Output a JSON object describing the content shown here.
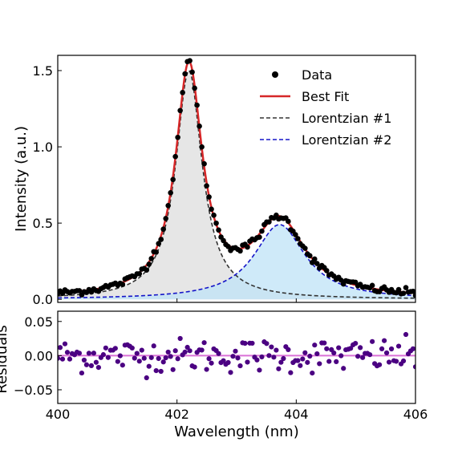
{
  "chart_data": [
    {
      "type": "line",
      "panel": "main",
      "ylabel": "Intensity (a.u.)",
      "xlim": [
        400,
        406
      ],
      "ylim": [
        -0.02,
        1.6
      ],
      "x_ticks": [
        "400",
        "402",
        "404",
        "406"
      ],
      "y_ticks": [
        "0.0",
        "0.5",
        "1.0",
        "1.5"
      ],
      "legend_position": "top-right",
      "legend": [
        "Data",
        "Best Fit",
        "Lorentzian #1",
        "Lorentzian #2"
      ],
      "model": {
        "lorentzian_1": {
          "center": 402.2,
          "hwhm": 0.27,
          "amplitude": 1.5
        },
        "lorentzian_2": {
          "center": 403.72,
          "hwhm": 0.52,
          "amplitude": 0.49
        },
        "baseline": 0.01
      },
      "series": [
        {
          "name": "Data",
          "style": "scatter",
          "color": "#000000"
        },
        {
          "name": "Best Fit",
          "style": "solid",
          "color": "#d62728"
        },
        {
          "name": "Lorentzian #1",
          "style": "dashed",
          "color": "#333333",
          "fill": "#e3e3e3"
        },
        {
          "name": "Lorentzian #2",
          "style": "dashed",
          "color": "#1515c8",
          "fill": "#bfe3f7"
        }
      ],
      "grid": false
    },
    {
      "type": "scatter",
      "panel": "residuals",
      "ylabel": "Residuals",
      "xlabel": "Wavelength (nm)",
      "xlim": [
        400,
        406
      ],
      "ylim": [
        -0.07,
        0.065
      ],
      "x_ticks": [
        "400",
        "402",
        "404",
        "406"
      ],
      "y_ticks": [
        "0.05",
        "0.00",
        "−0.05"
      ],
      "zero_line_color": "#da70d6",
      "point_color": "#4b0082",
      "residual_amplitude": 0.05,
      "grid": false
    }
  ]
}
